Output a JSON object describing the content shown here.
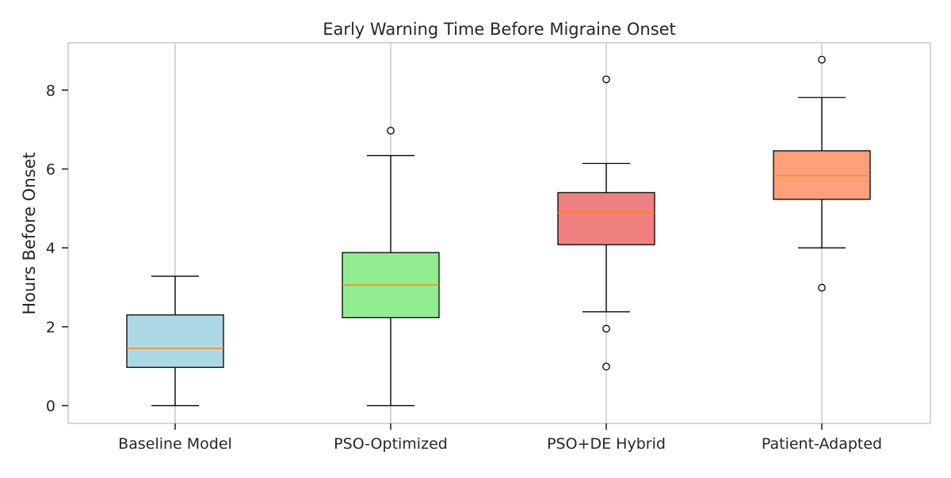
{
  "chart_data": {
    "type": "box",
    "title": "Early Warning Time Before Migraine Onset",
    "xlabel": "",
    "ylabel": "Hours Before Onset",
    "ylim": [
      -0.45,
      9.2
    ],
    "yticks": [
      0,
      2,
      4,
      6,
      8
    ],
    "grid": "vertical",
    "categories": [
      "Baseline Model",
      "PSO-Optimized",
      "PSO+DE Hybrid",
      "Patient-Adapted"
    ],
    "boxes": [
      {
        "category": "Baseline Model",
        "whisker_low": 0.0,
        "q1": 0.97,
        "median": 1.45,
        "q3": 2.3,
        "whisker_high": 3.28,
        "outliers": [],
        "color": "#add8e6"
      },
      {
        "category": "PSO-Optimized",
        "whisker_low": 0.0,
        "q1": 2.23,
        "median": 3.06,
        "q3": 3.88,
        "whisker_high": 6.34,
        "outliers": [
          6.97
        ],
        "color": "#90ee90"
      },
      {
        "category": "PSO+DE Hybrid",
        "whisker_low": 2.38,
        "q1": 4.08,
        "median": 4.89,
        "q3": 5.4,
        "whisker_high": 6.14,
        "outliers": [
          8.27,
          1.95,
          0.99
        ],
        "color": "#f08080"
      },
      {
        "category": "Patient-Adapted",
        "whisker_low": 4.0,
        "q1": 5.23,
        "median": 5.83,
        "q3": 6.46,
        "whisker_high": 7.81,
        "outliers": [
          8.77,
          2.99
        ],
        "color": "#ffa07a"
      }
    ],
    "median_color": "#ff7f0e",
    "grid_color": "#cccccc"
  }
}
